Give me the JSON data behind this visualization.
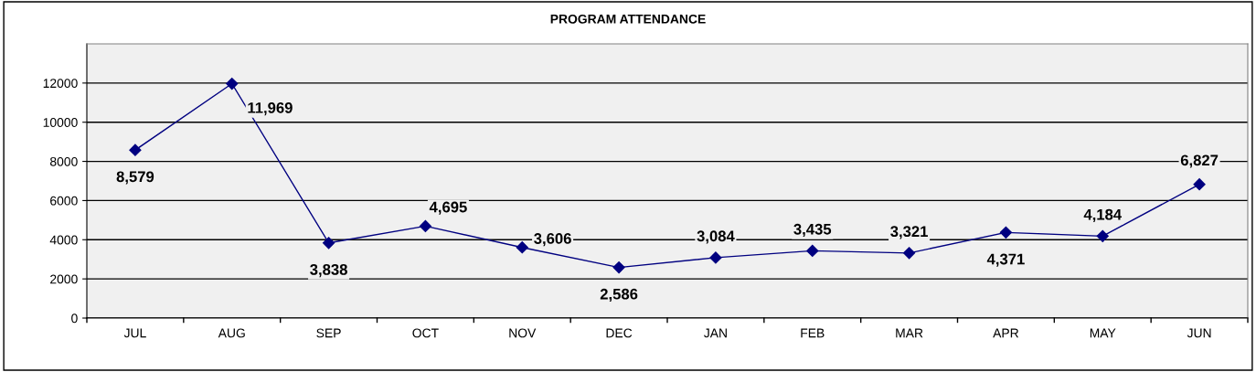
{
  "chart_data": {
    "type": "line",
    "title": "PROGRAM ATTENDANCE",
    "categories": [
      "JUL",
      "AUG",
      "SEP",
      "OCT",
      "NOV",
      "DEC",
      "JAN",
      "FEB",
      "MAR",
      "APR",
      "MAY",
      "JUN"
    ],
    "series": [
      {
        "color": "#000080",
        "values": [
          8579,
          11969,
          3838,
          4695,
          3606,
          2586,
          3084,
          3435,
          3321,
          4371,
          4184,
          6827
        ],
        "value_labels": [
          "8,579",
          "11,969",
          "3,838",
          "4,695",
          "3,606",
          "2,586",
          "3,084",
          "3,435",
          "3,321",
          "4,371",
          "4,184",
          "6,827"
        ]
      }
    ],
    "ylim": [
      0,
      14000
    ],
    "yticks": [
      0,
      2000,
      4000,
      6000,
      8000,
      10000,
      12000
    ],
    "grid": "y",
    "marker": "diamond",
    "line_style": "solid"
  }
}
